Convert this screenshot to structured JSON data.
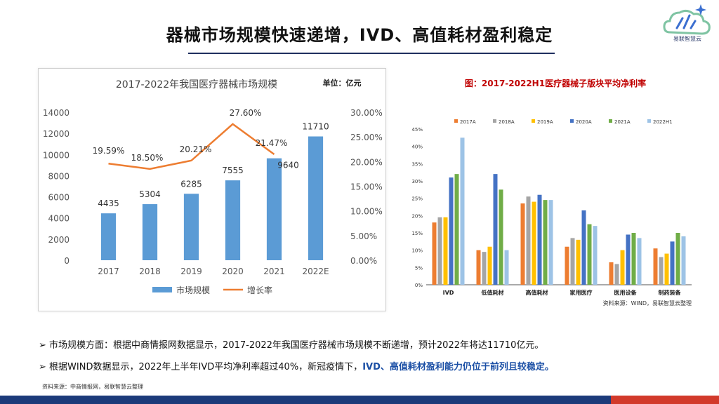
{
  "page": {
    "title": "器械市场规模快速递增，IVD、高值耗材盈利稳定",
    "logo_label": "易联智慧云",
    "bullets": [
      {
        "marker": "➢",
        "text": "市场规模方面：根据中商情报网数据显示，2017-2022年我国医疗器械市场规模不断递增，预计2022年将达11710亿元。"
      },
      {
        "marker": "➢",
        "text_plain": "根据WIND数据显示，2022年上半年IVD平均净利率超过40%，新冠疫情下，",
        "text_highlight": "IVD、高值耗材盈利能力仍位于前列且较稳定。"
      }
    ],
    "source_note": "资料来源：中商情报网，易联智慧云整理"
  },
  "chart_data": [
    {
      "type": "bar",
      "title": "2017-2022年我国医疗器械市场规模",
      "unit_label": "单位：亿元",
      "categories": [
        "2017",
        "2018",
        "2019",
        "2020",
        "2021",
        "2022E"
      ],
      "series": [
        {
          "name": "市场规模",
          "kind": "bar",
          "axis": "left",
          "color": "#5b9bd5",
          "values": [
            4435,
            5304,
            6285,
            7555,
            9640,
            11710
          ],
          "labels": [
            "4435",
            "5304",
            "6285",
            "7555",
            "9640",
            "11710"
          ]
        },
        {
          "name": "增长率",
          "kind": "line",
          "axis": "right",
          "color": "#ed7d31",
          "values": [
            19.59,
            18.5,
            20.21,
            27.6,
            21.47,
            null
          ],
          "labels": [
            "19.59%",
            "18.50%",
            "20.21%",
            "27.60%",
            "21.47%",
            ""
          ]
        }
      ],
      "ylim": [
        0,
        14000
      ],
      "yticks": [
        "0",
        "2000",
        "4000",
        "6000",
        "8000",
        "10000",
        "12000",
        "14000"
      ],
      "y2lim": [
        0,
        30
      ],
      "y2ticks": [
        "0.00%",
        "5.00%",
        "10.00%",
        "15.00%",
        "20.00%",
        "25.00%",
        "30.00%"
      ],
      "legend": "bottom",
      "grid": false
    },
    {
      "type": "bar",
      "title": "图：2017-2022H1医疗器械子版块平均净利率",
      "categories": [
        "IVD",
        "低值耗材",
        "高值耗材",
        "家用医疗",
        "医用设备",
        "制药装备"
      ],
      "series": [
        {
          "name": "2017A",
          "color": "#ed7d31",
          "values": [
            18.0,
            10.0,
            23.5,
            11.0,
            6.5,
            10.5
          ]
        },
        {
          "name": "2018A",
          "color": "#a5a5a5",
          "values": [
            19.5,
            9.5,
            25.5,
            13.5,
            6.0,
            8.0
          ]
        },
        {
          "name": "2019A",
          "color": "#ffc000",
          "values": [
            19.5,
            11.0,
            24.0,
            13.0,
            10.0,
            9.0
          ]
        },
        {
          "name": "2020A",
          "color": "#4472c4",
          "values": [
            31.0,
            32.0,
            26.0,
            21.5,
            14.5,
            12.5
          ]
        },
        {
          "name": "2021A",
          "color": "#70ad47",
          "values": [
            32.0,
            27.5,
            24.5,
            17.5,
            15.0,
            15.0
          ]
        },
        {
          "name": "2022H1",
          "color": "#9dc3e6",
          "values": [
            42.5,
            10.0,
            24.5,
            17.0,
            13.5,
            14.0
          ]
        }
      ],
      "ylim": [
        0,
        45
      ],
      "yticks": [
        "0%",
        "5%",
        "10%",
        "15%",
        "20%",
        "25%",
        "30%",
        "35%",
        "40%",
        "45%"
      ],
      "legend": "top",
      "grid": false,
      "source_note": "资料来源：WIND，易联智慧云整理"
    }
  ]
}
